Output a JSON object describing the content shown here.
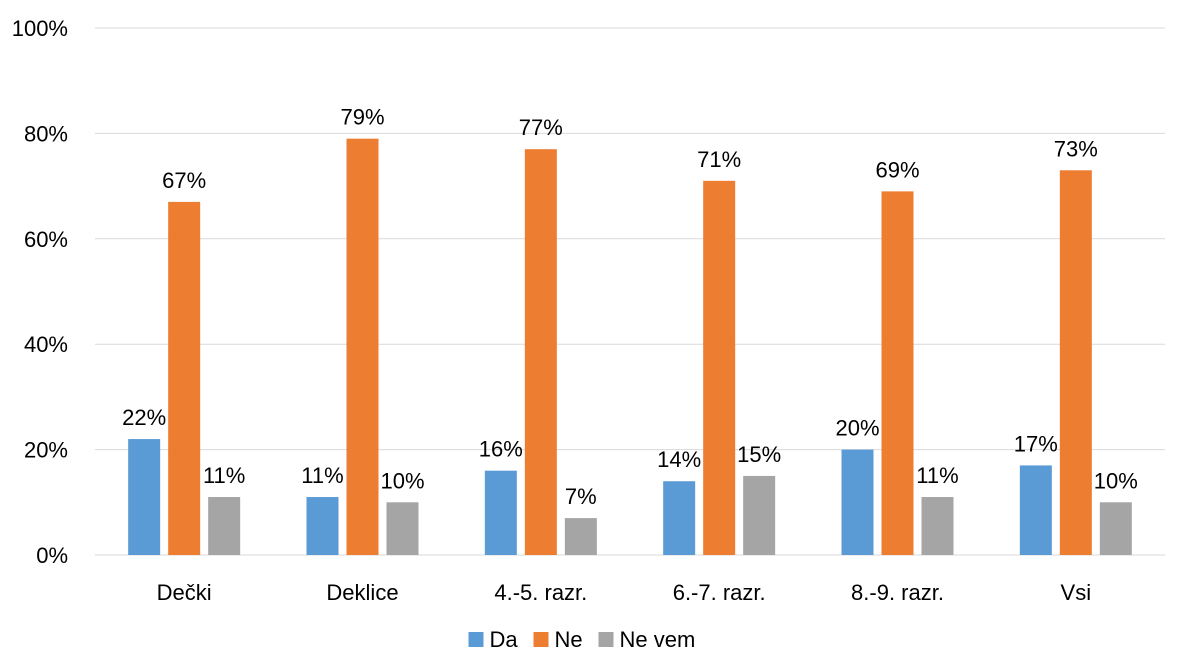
{
  "chart_data": {
    "type": "bar",
    "categories": [
      "Dečki",
      "Deklice",
      "4.-5. razr.",
      "6.-7. razr.",
      "8.-9. razr.",
      "Vsi"
    ],
    "series": [
      {
        "name": "Da",
        "color": "#5b9bd5",
        "values": [
          22,
          11,
          16,
          14,
          20,
          17
        ],
        "labels": [
          "22%",
          "11%",
          "16%",
          "14%",
          "20%",
          "17%"
        ]
      },
      {
        "name": "Ne",
        "color": "#ed7d31",
        "values": [
          67,
          79,
          77,
          71,
          69,
          73
        ],
        "labels": [
          "67%",
          "79%",
          "77%",
          "71%",
          "69%",
          "73%"
        ]
      },
      {
        "name": "Ne vem",
        "color": "#a5a5a5",
        "values": [
          11,
          10,
          7,
          15,
          11,
          10
        ],
        "labels": [
          "11%",
          "10%",
          "7%",
          "15%",
          "11%",
          "10%"
        ]
      }
    ],
    "y_ticks": [
      "0%",
      "20%",
      "40%",
      "60%",
      "80%",
      "100%"
    ],
    "ylim": [
      0,
      100
    ],
    "grid": true,
    "legend_position": "bottom"
  }
}
